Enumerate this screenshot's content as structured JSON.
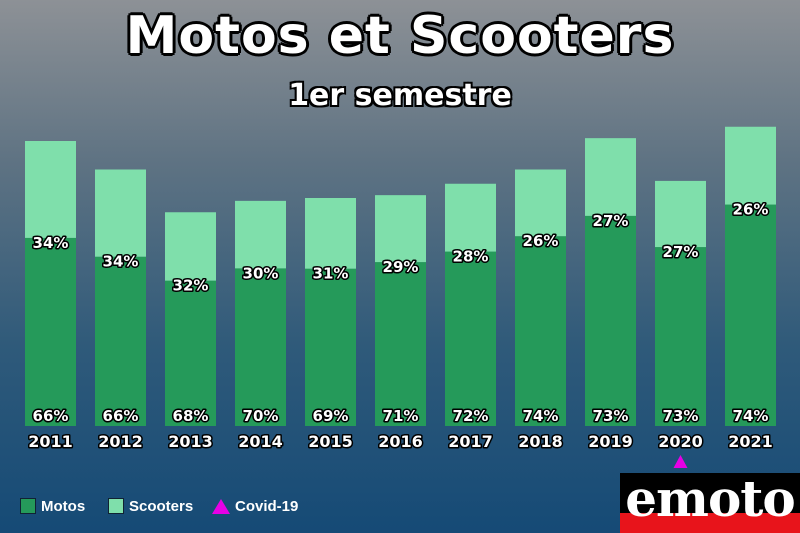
{
  "colors": {
    "motos": "#259a5a",
    "scooters": "#7fdfab",
    "covid": "#e600e6",
    "label_text": "#ffffff"
  },
  "chart_data": {
    "type": "bar",
    "stacked": true,
    "title": "Motos et Scooters",
    "subtitle": "1er semestre",
    "categories": [
      "2011",
      "2012",
      "2013",
      "2014",
      "2015",
      "2016",
      "2017",
      "2018",
      "2019",
      "2020",
      "2021"
    ],
    "series": [
      {
        "name": "Motos",
        "values": [
          66,
          66,
          68,
          70,
          69,
          71,
          72,
          74,
          73,
          73,
          74
        ],
        "labels": [
          "66%",
          "66%",
          "68%",
          "70%",
          "69%",
          "71%",
          "72%",
          "74%",
          "73%",
          "73%",
          "74%"
        ]
      },
      {
        "name": "Scooters",
        "values": [
          34,
          34,
          32,
          30,
          31,
          29,
          28,
          26,
          27,
          27,
          26
        ],
        "labels": [
          "34%",
          "34%",
          "32%",
          "30%",
          "31%",
          "29%",
          "28%",
          "26%",
          "27%",
          "27%",
          "26%"
        ]
      }
    ],
    "totals_relative": [
      1.0,
      0.9,
      0.75,
      0.79,
      0.8,
      0.81,
      0.85,
      0.9,
      1.01,
      0.86,
      1.05
    ],
    "annotations": [
      {
        "category": "2020",
        "marker": "triangle",
        "label": "Covid-19"
      }
    ],
    "legend": {
      "placement": "bottom-left",
      "items": [
        "Motos",
        "Scooters",
        "Covid-19"
      ]
    },
    "grid": false,
    "axes": {
      "y_visible": false
    }
  },
  "legend": {
    "motos": "Motos",
    "scooters": "Scooters",
    "covid": "Covid-19"
  },
  "logo": {
    "text": "emoto"
  }
}
